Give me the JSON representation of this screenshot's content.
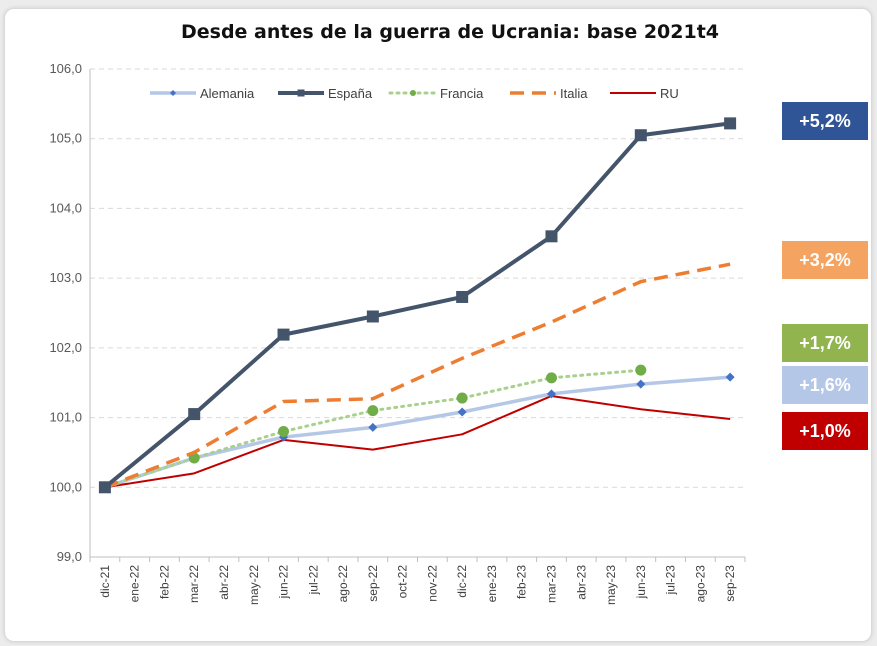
{
  "chart_data": {
    "type": "line",
    "title": "Desde antes de la guerra de Ucrania:  base 2021t4",
    "xlabel": "",
    "ylabel": "",
    "ylim": [
      99.0,
      106.0
    ],
    "yticks": [
      "99,0",
      "100,0",
      "101,0",
      "102,0",
      "103,0",
      "104,0",
      "105,0",
      "106,0"
    ],
    "categories": [
      "dic-21",
      "ene-22",
      "feb-22",
      "mar-22",
      "abr-22",
      "may-22",
      "jun-22",
      "jul-22",
      "ago-22",
      "sep-22",
      "oct-22",
      "nov-22",
      "dic-22",
      "ene-23",
      "feb-23",
      "mar-23",
      "abr-23",
      "may-23",
      "jun-23",
      "jul-23",
      "ago-23",
      "sep-23"
    ],
    "series": [
      {
        "name": "Alemania",
        "color": "#b4c7e7",
        "style": "solid-diamond",
        "points": [
          [
            0,
            100.0
          ],
          [
            3,
            100.42
          ],
          [
            6,
            100.72
          ],
          [
            9,
            100.86
          ],
          [
            12,
            101.08
          ],
          [
            15,
            101.34
          ],
          [
            18,
            101.48
          ],
          [
            21,
            101.58
          ]
        ]
      },
      {
        "name": "España",
        "color": "#44546a",
        "style": "solid-square",
        "points": [
          [
            0,
            100.0
          ],
          [
            3,
            101.05
          ],
          [
            6,
            102.19
          ],
          [
            9,
            102.45
          ],
          [
            12,
            102.73
          ],
          [
            15,
            103.6
          ],
          [
            18,
            105.05
          ],
          [
            21,
            105.22
          ]
        ]
      },
      {
        "name": "Francia",
        "color": "#a9d18e",
        "markerColor": "#70ad47",
        "style": "dotted-circle",
        "points": [
          [
            0,
            100.0
          ],
          [
            3,
            100.42
          ],
          [
            6,
            100.8
          ],
          [
            9,
            101.1
          ],
          [
            12,
            101.28
          ],
          [
            15,
            101.57
          ],
          [
            18,
            101.68
          ]
        ]
      },
      {
        "name": "Italia",
        "color": "#ed7d31",
        "style": "dashed",
        "points": [
          [
            0,
            100.0
          ],
          [
            3,
            100.5
          ],
          [
            6,
            101.23
          ],
          [
            9,
            101.27
          ],
          [
            12,
            101.85
          ],
          [
            15,
            102.37
          ],
          [
            18,
            102.95
          ],
          [
            21,
            103.2
          ]
        ]
      },
      {
        "name": "RU",
        "color": "#c00000",
        "style": "thin",
        "points": [
          [
            0,
            100.0
          ],
          [
            3,
            100.2
          ],
          [
            6,
            100.68
          ],
          [
            9,
            100.54
          ],
          [
            12,
            100.76
          ],
          [
            15,
            101.31
          ],
          [
            18,
            101.12
          ],
          [
            21,
            100.98
          ]
        ]
      }
    ],
    "badges": [
      {
        "label": "+5,2%",
        "color": "#2f5597",
        "value": 105.22
      },
      {
        "label": "+3,2%",
        "color": "#f4a460",
        "value": 103.2
      },
      {
        "label": "+1,7%",
        "color": "#92b44f",
        "value": 101.7
      },
      {
        "label": "+1,6%",
        "color": "#b4c7e7",
        "value": 101.58
      },
      {
        "label": "+1,0%",
        "color": "#c00000",
        "value": 100.98
      }
    ]
  }
}
